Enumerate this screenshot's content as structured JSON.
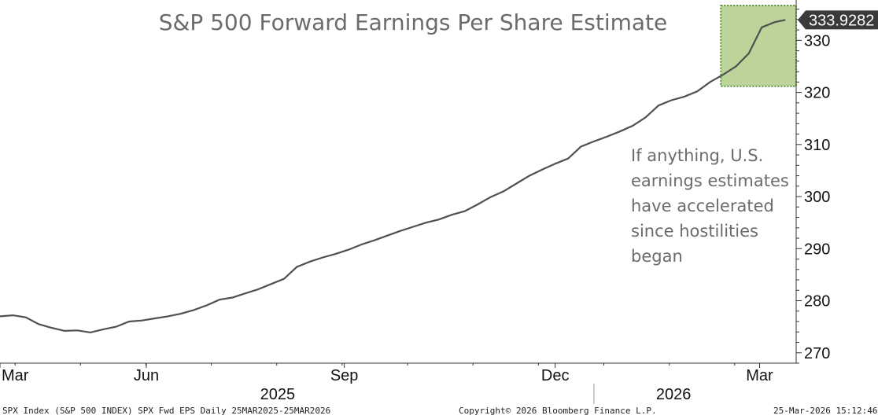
{
  "chart_data": {
    "type": "line",
    "title": "S&P 500 Forward Earnings Per Share Estimate",
    "series": [
      {
        "name": "SPX Fwd EPS",
        "x": [
          0,
          6,
          12,
          18,
          24,
          30,
          36,
          42,
          48,
          54,
          60,
          66,
          72,
          78,
          84,
          90,
          96,
          102,
          108,
          114,
          120,
          126,
          132,
          138,
          144,
          150,
          156,
          162,
          168,
          174,
          180,
          186,
          192,
          198,
          204,
          210,
          216,
          222,
          228,
          234,
          240,
          246,
          252,
          258,
          264,
          270,
          276,
          282,
          288,
          294,
          300,
          306,
          312,
          318,
          324,
          330,
          336,
          342,
          348,
          354,
          360,
          365
        ],
        "values": [
          277.0,
          277.2,
          276.8,
          275.5,
          274.8,
          274.2,
          274.3,
          273.9,
          274.5,
          275.0,
          276.0,
          276.2,
          276.6,
          277.0,
          277.5,
          278.2,
          279.1,
          280.2,
          280.6,
          281.4,
          282.2,
          283.2,
          284.2,
          286.5,
          287.5,
          288.3,
          289.0,
          289.8,
          290.8,
          291.6,
          292.5,
          293.4,
          294.2,
          295.0,
          295.6,
          296.5,
          297.2,
          298.5,
          299.9,
          301.0,
          302.5,
          304.0,
          305.2,
          306.3,
          307.3,
          309.6,
          310.6,
          311.5,
          312.5,
          313.6,
          315.2,
          317.5,
          318.5,
          319.2,
          320.2,
          322.0,
          323.4,
          325.0,
          327.5,
          332.5,
          333.5,
          333.9282
        ]
      }
    ],
    "ylim": [
      268,
      337
    ],
    "yticks": [
      270,
      280,
      290,
      300,
      310,
      320,
      330
    ],
    "xticks": [
      {
        "label": "Mar",
        "day": 0
      },
      {
        "label": "Jun",
        "day": 68
      },
      {
        "label": "Sep",
        "day": 160
      },
      {
        "label": "Dec",
        "day": 258
      },
      {
        "label": "Mar",
        "day": 353
      }
    ],
    "xlim": [
      0,
      370
    ],
    "years": [
      {
        "label": "2025",
        "day": 129
      },
      {
        "label": "2026",
        "day": 313
      }
    ],
    "year_separator_day": 276,
    "highlight": {
      "x_start": 335,
      "x_end": 370,
      "y_start": 321.2,
      "y_end": 336.7,
      "color": "#bcd49a",
      "border": "#3f7a1f"
    },
    "last_value_label": "333.9282",
    "line_color": "#505050"
  },
  "annotation": {
    "lines": [
      "If anything, U.S.",
      "earnings estimates",
      "have accelerated",
      "since hostilities",
      "began"
    ]
  },
  "footer": {
    "left": "SPX Index (S&P 500 INDEX) SPX Fwd EPS Daily 25MAR2025-25MAR2026",
    "center": "Copyright© 2026 Bloomberg Finance L.P.",
    "right": "25-Mar-2026 15:12:46"
  }
}
